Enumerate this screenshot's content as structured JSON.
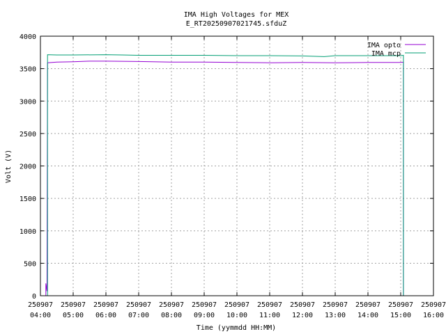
{
  "chart_data": {
    "type": "line",
    "title": "IMA High Voltages for MEX",
    "subtitle": "E_RT20250907021745.sfduZ",
    "xlabel": "Time (yymmdd HH:MM)",
    "ylabel": "Volt (V)",
    "xlim": [
      "250907 04:00",
      "250907 16:00"
    ],
    "ylim": [
      0,
      4000
    ],
    "grid": true,
    "legend_position": "top-right",
    "x_ticks": [
      {
        "date": "250907",
        "time": "04:00"
      },
      {
        "date": "250907",
        "time": "05:00"
      },
      {
        "date": "250907",
        "time": "06:00"
      },
      {
        "date": "250907",
        "time": "07:00"
      },
      {
        "date": "250907",
        "time": "08:00"
      },
      {
        "date": "250907",
        "time": "09:00"
      },
      {
        "date": "250907",
        "time": "10:00"
      },
      {
        "date": "250907",
        "time": "11:00"
      },
      {
        "date": "250907",
        "time": "12:00"
      },
      {
        "date": "250907",
        "time": "13:00"
      },
      {
        "date": "250907",
        "time": "14:00"
      },
      {
        "date": "250907",
        "time": "15:00"
      },
      {
        "date": "250907",
        "time": "16:00"
      }
    ],
    "y_ticks": [
      0,
      500,
      1000,
      1500,
      2000,
      2500,
      3000,
      3500,
      4000
    ],
    "series": [
      {
        "name": "IMA opto",
        "color": "#9400d3",
        "points": [
          [
            "250907 04:10",
            0
          ],
          [
            "250907 04:10",
            190
          ],
          [
            "250907 04:12",
            70
          ],
          [
            "250907 04:13",
            3590
          ],
          [
            "250907 04:30",
            3600
          ],
          [
            "250907 05:00",
            3605
          ],
          [
            "250907 05:30",
            3615
          ],
          [
            "250907 06:00",
            3615
          ],
          [
            "250907 07:00",
            3610
          ],
          [
            "250907 08:00",
            3600
          ],
          [
            "250907 09:00",
            3600
          ],
          [
            "250907 10:00",
            3595
          ],
          [
            "250907 11:00",
            3590
          ],
          [
            "250907 12:00",
            3595
          ],
          [
            "250907 13:00",
            3590
          ],
          [
            "250907 14:00",
            3595
          ],
          [
            "250907 15:00",
            3595
          ],
          [
            "250907 15:05",
            3600
          ],
          [
            "250907 15:05",
            0
          ]
        ]
      },
      {
        "name": "IMA mcp",
        "color": "#009e73",
        "points": [
          [
            "250907 04:13",
            0
          ],
          [
            "250907 04:13",
            3715
          ],
          [
            "250907 04:30",
            3710
          ],
          [
            "250907 05:00",
            3710
          ],
          [
            "250907 06:00",
            3715
          ],
          [
            "250907 06:30",
            3710
          ],
          [
            "250907 07:00",
            3705
          ],
          [
            "250907 08:00",
            3705
          ],
          [
            "250907 09:00",
            3705
          ],
          [
            "250907 10:00",
            3700
          ],
          [
            "250907 11:00",
            3700
          ],
          [
            "250907 12:00",
            3695
          ],
          [
            "250907 12:40",
            3685
          ],
          [
            "250907 13:00",
            3700
          ],
          [
            "250907 14:00",
            3700
          ],
          [
            "250907 15:00",
            3700
          ],
          [
            "250907 15:05",
            3705
          ],
          [
            "250907 15:05",
            0
          ]
        ]
      }
    ]
  }
}
